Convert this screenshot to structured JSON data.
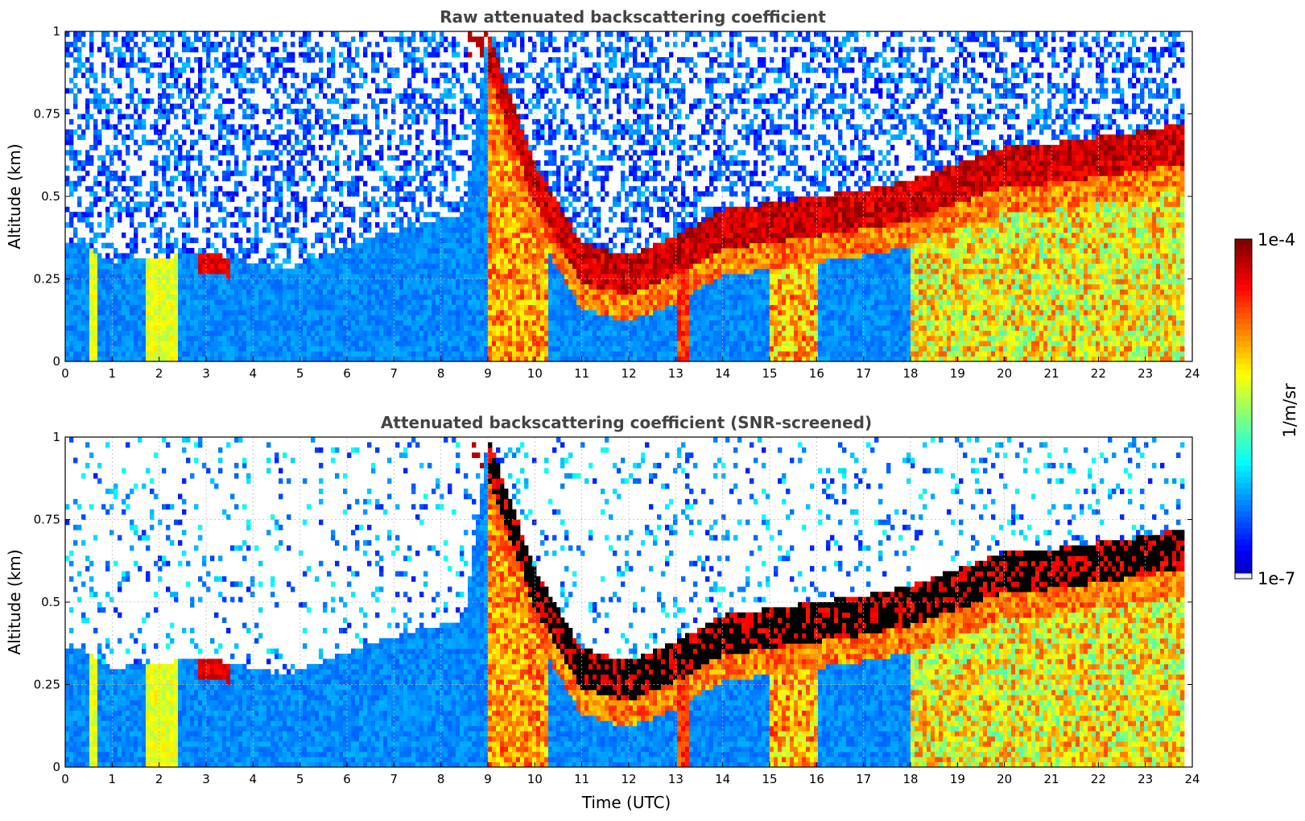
{
  "chart_data": [
    {
      "type": "heatmap",
      "title": "Raw attenuated backscattering coefficient",
      "xlabel": "",
      "ylabel": "Altitude (km)",
      "xlim": [
        0,
        24
      ],
      "ylim": [
        0,
        1
      ],
      "xticks": [
        "0",
        "1",
        "2",
        "3",
        "4",
        "5",
        "6",
        "7",
        "8",
        "9",
        "10",
        "11",
        "12",
        "13",
        "14",
        "15",
        "16",
        "17",
        "18",
        "19",
        "20",
        "21",
        "22",
        "23",
        "24"
      ],
      "yticks": [
        "0",
        "0.25",
        "0.5",
        "0.75",
        "1"
      ],
      "grid": true,
      "variable": "raw",
      "data_end_utc": 23.8,
      "layer_top_km": [
        {
          "time": 0.0,
          "top": 0.36
        },
        {
          "time": 0.5,
          "top": 0.35
        },
        {
          "time": 1.0,
          "top": 0.3
        },
        {
          "time": 3.0,
          "top": 0.33
        },
        {
          "time": 4.7,
          "top": 0.28
        },
        {
          "time": 6.6,
          "top": 0.38
        },
        {
          "time": 8.5,
          "top": 0.45
        },
        {
          "time": 9.0,
          "top": 1.0
        },
        {
          "time": 9.5,
          "top": 0.8
        },
        {
          "time": 10.0,
          "top": 0.6
        },
        {
          "time": 11.0,
          "top": 0.36
        },
        {
          "time": 12.0,
          "top": 0.32
        },
        {
          "time": 13.0,
          "top": 0.38
        },
        {
          "time": 14.0,
          "top": 0.46
        },
        {
          "time": 15.0,
          "top": 0.48
        },
        {
          "time": 16.0,
          "top": 0.5
        },
        {
          "time": 17.0,
          "top": 0.52
        },
        {
          "time": 18.0,
          "top": 0.55
        },
        {
          "time": 19.0,
          "top": 0.6
        },
        {
          "time": 20.0,
          "top": 0.65
        },
        {
          "time": 21.0,
          "top": 0.66
        },
        {
          "time": 22.0,
          "top": 0.68
        },
        {
          "time": 23.0,
          "top": 0.7
        },
        {
          "time": 23.8,
          "top": 0.72
        }
      ]
    },
    {
      "type": "heatmap",
      "title": "Attenuated backscattering coefficient (SNR-screened)",
      "xlabel": "Time (UTC)",
      "ylabel": "Altitude (km)",
      "xlim": [
        0,
        24
      ],
      "ylim": [
        0,
        1
      ],
      "xticks": [
        "0",
        "1",
        "2",
        "3",
        "4",
        "5",
        "6",
        "7",
        "8",
        "9",
        "10",
        "11",
        "12",
        "13",
        "14",
        "15",
        "16",
        "17",
        "18",
        "19",
        "20",
        "21",
        "22",
        "23",
        "24"
      ],
      "yticks": [
        "0",
        "0.25",
        "0.5",
        "0.75",
        "1"
      ],
      "grid": true,
      "variable": "screened",
      "data_end_utc": 23.8
    }
  ],
  "colorbar": {
    "label": "1/m/sr",
    "max_label": "1e-4",
    "min_label": "1e-7",
    "log_range": [
      -7,
      -4
    ],
    "colormap": "jet",
    "low_color": "#eeeeff",
    "high_color": "#800000"
  },
  "colors": {
    "grid": "#bbbbbb",
    "title": "#444444",
    "background": "#ffffff"
  }
}
